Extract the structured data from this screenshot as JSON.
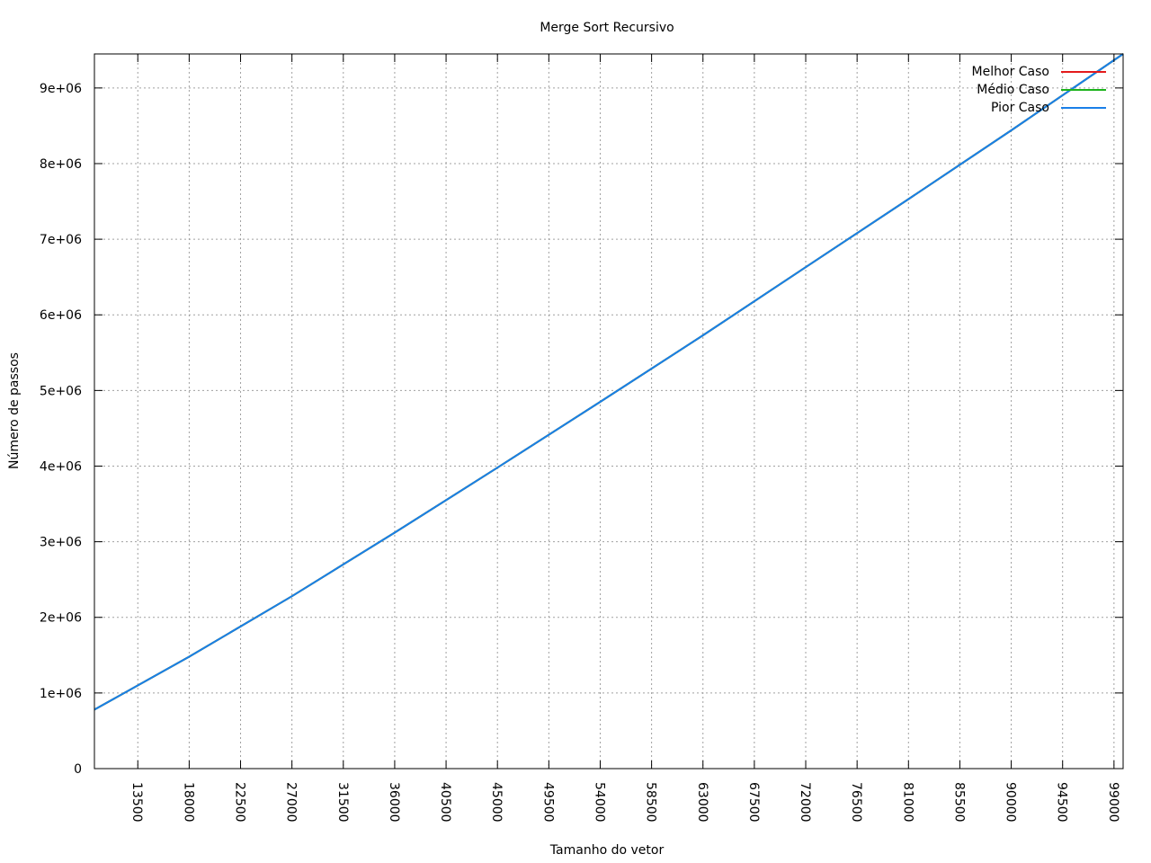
{
  "chart_data": {
    "type": "line",
    "title": "Merge Sort Recursivo",
    "xlabel": "Tamanho do vetor",
    "ylabel": "Número de passos",
    "xlim": [
      9700,
      99800
    ],
    "ylim": [
      0,
      9450000
    ],
    "x_ticks": [
      13500,
      18000,
      22500,
      27000,
      31500,
      36000,
      40500,
      45000,
      49500,
      54000,
      58500,
      63000,
      67500,
      72000,
      76500,
      81000,
      85500,
      90000,
      94500,
      99000
    ],
    "y_ticks": [
      0,
      1000000,
      2000000,
      3000000,
      4000000,
      5000000,
      6000000,
      7000000,
      8000000,
      9000000
    ],
    "y_tick_labels": [
      "0",
      "1e+06",
      "2e+06",
      "3e+06",
      "4e+06",
      "5e+06",
      "6e+06",
      "7e+06",
      "8e+06",
      "9e+06"
    ],
    "grid": true,
    "legend_position": "top-right",
    "series": [
      {
        "name": "Melhor Caso",
        "color": "#e41a1c",
        "x": [
          9700,
          18000,
          27000,
          36000,
          45000,
          54000,
          63000,
          72000,
          81000,
          90000,
          99800
        ],
        "y": [
          780000,
          1480000,
          2280000,
          3120000,
          3980000,
          4850000,
          5730000,
          6630000,
          7530000,
          8440000,
          9450000
        ]
      },
      {
        "name": "Médio Caso",
        "color": "#1cb31c",
        "x": [
          9700,
          18000,
          27000,
          36000,
          45000,
          54000,
          63000,
          72000,
          81000,
          90000,
          99800
        ],
        "y": [
          780000,
          1480000,
          2280000,
          3120000,
          3980000,
          4850000,
          5730000,
          6630000,
          7530000,
          8440000,
          9450000
        ]
      },
      {
        "name": "Pior Caso",
        "color": "#1a7fe8",
        "x": [
          9700,
          18000,
          27000,
          36000,
          45000,
          54000,
          63000,
          72000,
          81000,
          90000,
          99800
        ],
        "y": [
          780000,
          1480000,
          2280000,
          3120000,
          3980000,
          4850000,
          5730000,
          6630000,
          7530000,
          8440000,
          9450000
        ]
      }
    ]
  }
}
